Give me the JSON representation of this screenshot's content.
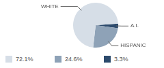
{
  "chart_data": {
    "type": "pie",
    "categories": [
      "WHITE",
      "HISPANIC",
      "A.I."
    ],
    "values": [
      72.1,
      24.6,
      3.3
    ],
    "value_labels": [
      "72.1%",
      "24.6%",
      "3.3%"
    ],
    "colors": [
      "#d6dee7",
      "#8ea2b7",
      "#2c4a6c"
    ],
    "legend": "bottom"
  }
}
